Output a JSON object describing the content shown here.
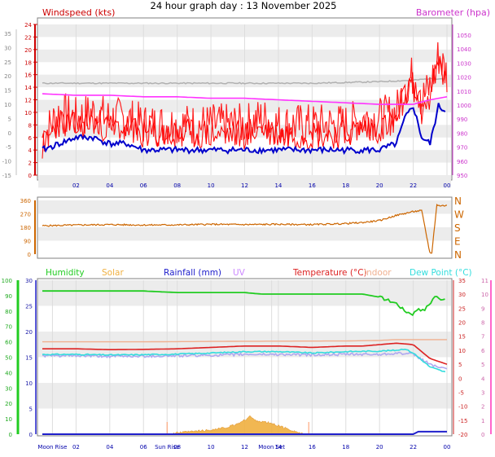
{
  "page_title": "24 hour graph day : 13 November 2025",
  "colors": {
    "wind": "#ff0000",
    "gust": "#ff2020",
    "avg_wind": "#0000cc",
    "baro": "#ff33ff",
    "baro_ghost": "#b0b0b0",
    "dir": "#cc6600",
    "humidity": "#22cc22",
    "solar": "#f0b040",
    "rain": "#2020cc",
    "uv": "#cc88ff",
    "temp": "#dd2222",
    "indoor": "#f0b090",
    "dew": "#33dddd",
    "panel_bg": "#ececec"
  },
  "chart_data": [
    {
      "type": "line",
      "title": "24 hour graph day : 13 November 2025",
      "left_label": "Windspeed (kts)",
      "right_label": "Barometer (hpa)",
      "x_ticks": [
        "02",
        "04",
        "06",
        "08",
        "10",
        "12",
        "14",
        "16",
        "18",
        "20",
        "22",
        "00"
      ],
      "x_range": [
        0,
        24
      ],
      "left_axis_ticks": [
        "24",
        "22",
        "20",
        "18",
        "16",
        "14",
        "12",
        "10",
        "8",
        "6",
        "4",
        "2",
        "0"
      ],
      "left_axis_range": [
        0,
        24
      ],
      "outer_left_ticks": [
        "35",
        "30",
        "25",
        "20",
        "15",
        "10",
        "5",
        "0",
        "-5",
        "-10",
        "-15"
      ],
      "right_axis_ticks": [
        "1050",
        "1040",
        "1030",
        "1020",
        "1010",
        "1000",
        "990",
        "980",
        "970",
        "960",
        "950"
      ],
      "right_axis_range": [
        950,
        1050
      ],
      "series": [
        {
          "name": "Windspeed (kts)",
          "key": "gust",
          "x": [
            0,
            1,
            2,
            3,
            4,
            5,
            6,
            7,
            8,
            9,
            10,
            11,
            12,
            13,
            14,
            15,
            16,
            17,
            18,
            19,
            20,
            21,
            21.5,
            22,
            22.5,
            23,
            23.5,
            24
          ],
          "values": [
            6,
            10,
            9,
            10,
            9,
            9,
            8,
            8,
            8,
            8,
            8,
            8,
            8,
            9,
            8,
            8,
            8,
            8,
            8,
            9,
            9,
            10,
            14,
            16,
            12,
            14,
            19,
            16
          ]
        },
        {
          "name": "avg",
          "key": "avg",
          "x": [
            0,
            1,
            2,
            3,
            4,
            5,
            6,
            7,
            8,
            9,
            10,
            11,
            12,
            13,
            14,
            15,
            16,
            17,
            18,
            19,
            20,
            21,
            21.5,
            22,
            22.5,
            23,
            23.5,
            24
          ],
          "values": [
            4,
            5,
            6,
            6,
            5,
            5,
            4,
            4,
            4,
            4,
            4,
            4,
            4,
            4,
            4,
            4,
            4,
            4,
            4,
            4,
            4,
            5,
            9,
            11,
            6,
            5,
            11,
            10
          ]
        },
        {
          "name": "Barometer (hpa)",
          "key": "baro",
          "x": [
            0,
            2,
            4,
            6,
            8,
            10,
            12,
            14,
            16,
            18,
            20,
            22,
            23,
            24
          ],
          "values": [
            1004,
            1003,
            1003,
            1002,
            1002,
            1001,
            1001,
            1000,
            999,
            998,
            997,
            997,
            1000,
            1002
          ]
        },
        {
          "name": "ghost",
          "key": "baro_ghost",
          "x": [
            0,
            4,
            8,
            12,
            16,
            20,
            22,
            23,
            24
          ],
          "values": [
            1011,
            1011,
            1011,
            1011,
            1011,
            1012,
            1013,
            1014,
            1014
          ]
        }
      ]
    },
    {
      "type": "line",
      "left_axis_ticks": [
        "360",
        "270",
        "180",
        "90",
        "0"
      ],
      "left_axis_range": [
        0,
        360
      ],
      "right_axis_ticks": [
        "N",
        "W",
        "S",
        "E",
        "N"
      ],
      "series": [
        {
          "name": "wind direction",
          "key": "dir",
          "x": [
            0,
            2,
            4,
            6,
            8,
            10,
            12,
            14,
            16,
            18,
            19,
            20,
            21,
            22,
            22.5,
            23,
            23.1,
            23.4,
            23.5,
            24
          ],
          "values": [
            190,
            195,
            198,
            195,
            196,
            200,
            198,
            200,
            198,
            205,
            212,
            225,
            260,
            285,
            292,
            0,
            10,
            330,
            325,
            325
          ]
        }
      ]
    },
    {
      "type": "line",
      "labels": [
        "Humidity",
        "Solar",
        "Rainfall (mm)",
        "UV",
        "Temperature (°C)",
        "Indoor",
        "Dew Point (°C)"
      ],
      "x_ticks": [
        "Moon Rise",
        "02",
        "04",
        "06",
        "Sun Rise",
        "08",
        "10",
        "12",
        "Moon Set",
        "14",
        "16",
        "18",
        "20",
        "22",
        "00"
      ],
      "humidity_ticks": [
        "100",
        "90",
        "80",
        "70",
        "60",
        "50",
        "40",
        "30",
        "20",
        "10",
        "0"
      ],
      "humidity_range": [
        0,
        100
      ],
      "rain_ticks": [
        "30",
        "25",
        "20",
        "15",
        "10",
        "5",
        "0"
      ],
      "rain_range": [
        0,
        30
      ],
      "temp_ticks": [
        "35",
        "30",
        "25",
        "20",
        "15",
        "10",
        "5",
        "0",
        "-5",
        "-10",
        "-15",
        "-20"
      ],
      "temp_range": [
        -20,
        35
      ],
      "uv_ticks": [
        "11",
        "10",
        "9",
        "8",
        "7",
        "6",
        "5",
        "4",
        "3",
        "2",
        "1",
        "0"
      ],
      "uv_range": [
        0,
        11
      ],
      "series": [
        {
          "name": "Humidity",
          "key": "hum",
          "x": [
            0,
            2,
            4,
            6,
            8,
            10,
            11,
            12,
            13,
            14,
            16,
            18,
            19,
            20,
            21,
            21.5,
            22,
            22.3,
            22.6,
            23,
            23.3,
            23.5,
            24
          ],
          "values": [
            93,
            93,
            93,
            93,
            92,
            92,
            92,
            92,
            91,
            91,
            91,
            91,
            91,
            89,
            85,
            80,
            78,
            82,
            80,
            85,
            90,
            88,
            88
          ]
        },
        {
          "name": "Temperature (°C)",
          "key": "temp",
          "x": [
            0,
            2,
            4,
            6,
            8,
            10,
            12,
            14,
            16,
            18,
            19,
            20,
            21,
            22,
            23,
            24
          ],
          "values": [
            10.5,
            10.5,
            10.2,
            10.3,
            10.5,
            11,
            11.5,
            11.5,
            11,
            11.5,
            11.5,
            12,
            12.5,
            12,
            7,
            5
          ]
        },
        {
          "name": "Indoor",
          "key": "indoor",
          "x": [
            0,
            6,
            12,
            18,
            20,
            21,
            22,
            23,
            24
          ],
          "values": [
            13,
            13,
            13.2,
            13.3,
            13.5,
            13.8,
            13.8,
            13.8,
            13.8
          ]
        },
        {
          "name": "Dew Point (°C)",
          "key": "dew",
          "x": [
            0,
            2,
            4,
            6,
            8,
            10,
            12,
            14,
            16,
            18,
            20,
            21,
            21.5,
            22,
            23,
            24
          ],
          "values": [
            8.5,
            8.5,
            8.3,
            8.4,
            8.6,
            9,
            9.5,
            9.5,
            9,
            9.5,
            9.7,
            10,
            10.5,
            9,
            4,
            2
          ]
        },
        {
          "name": "UV",
          "key": "uvline",
          "x": [
            0,
            2,
            4,
            6,
            8,
            10,
            12,
            14,
            16,
            18,
            20,
            21,
            22,
            23,
            24
          ],
          "values": [
            8,
            8,
            7.8,
            7.9,
            8,
            8.2,
            8.5,
            8.5,
            8.3,
            8.5,
            8.5,
            9,
            8.5,
            5,
            3
          ]
        },
        {
          "name": "Solar",
          "key": "solar",
          "x": [
            7.5,
            8,
            9,
            10,
            11,
            11.5,
            12,
            12.3,
            12.6,
            13,
            13.5,
            14,
            14.5,
            15,
            15.5
          ],
          "values": [
            0,
            0.5,
            1,
            1.5,
            2.5,
            3.5,
            5,
            6.5,
            5,
            4.5,
            4,
            3,
            2,
            1,
            0
          ]
        },
        {
          "name": "Rainfall (mm)",
          "key": "rain",
          "x": [
            0,
            22,
            22.3,
            24
          ],
          "values": [
            0,
            0,
            0.5,
            0.5
          ]
        }
      ]
    }
  ]
}
